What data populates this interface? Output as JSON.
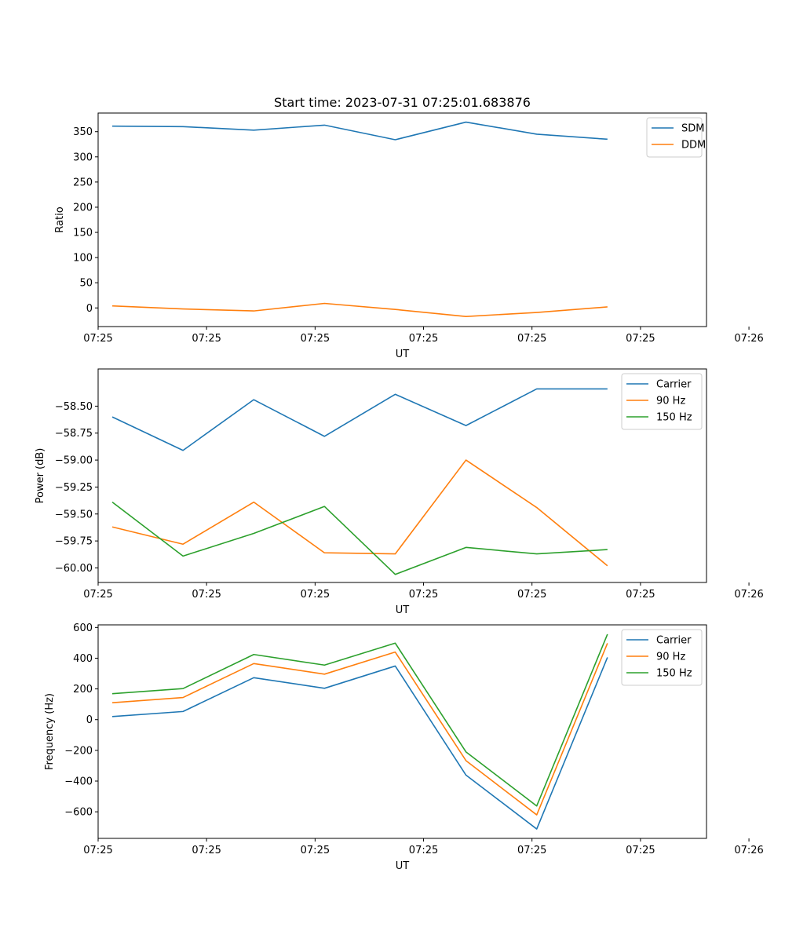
{
  "title": "Start time: 2023-07-31 07:25:01.683876",
  "chart_data": [
    {
      "type": "line",
      "title": "Start time: 2023-07-31 07:25:01.683876",
      "xlabel": "UT",
      "ylabel": "Ratio",
      "x": [
        1,
        2,
        3,
        4,
        5,
        6,
        7,
        8
      ],
      "xlim": [
        0.8,
        9.4
      ],
      "ylim": [
        -37,
        387
      ],
      "xticks": [
        {
          "v": 0.8,
          "label": "07:25"
        },
        {
          "v": 2.333,
          "label": "07:25"
        },
        {
          "v": 3.867,
          "label": "07:25"
        },
        {
          "v": 5.4,
          "label": "07:25"
        },
        {
          "v": 6.933,
          "label": "07:25"
        },
        {
          "v": 8.467,
          "label": "07:25"
        },
        {
          "v": 10.0,
          "label": "07:26"
        }
      ],
      "yticks": [
        {
          "v": 0,
          "label": "0"
        },
        {
          "v": 50,
          "label": "50"
        },
        {
          "v": 100,
          "label": "100"
        },
        {
          "v": 150,
          "label": "150"
        },
        {
          "v": 200,
          "label": "200"
        },
        {
          "v": 250,
          "label": "250"
        },
        {
          "v": 300,
          "label": "300"
        },
        {
          "v": 350,
          "label": "350"
        }
      ],
      "legend_position": "top-right",
      "series": [
        {
          "name": "SDM",
          "color": "#1f77b4",
          "values": [
            361,
            360,
            353,
            363,
            334,
            369,
            345,
            335
          ]
        },
        {
          "name": "DDM",
          "color": "#ff7f0e",
          "values": [
            4,
            -2,
            -6,
            9,
            -3,
            -17,
            -9,
            2
          ]
        }
      ]
    },
    {
      "type": "line",
      "xlabel": "UT",
      "ylabel": "Power (dB)",
      "x": [
        1,
        2,
        3,
        4,
        5,
        6,
        7,
        8
      ],
      "xlim": [
        0.8,
        9.4
      ],
      "ylim": [
        -60.135,
        -58.155
      ],
      "xticks": [
        {
          "v": 0.8,
          "label": "07:25"
        },
        {
          "v": 2.333,
          "label": "07:25"
        },
        {
          "v": 3.867,
          "label": "07:25"
        },
        {
          "v": 5.4,
          "label": "07:25"
        },
        {
          "v": 6.933,
          "label": "07:25"
        },
        {
          "v": 8.467,
          "label": "07:25"
        },
        {
          "v": 10.0,
          "label": "07:26"
        }
      ],
      "yticks": [
        {
          "v": -60.0,
          "label": "−60.00"
        },
        {
          "v": -59.75,
          "label": "−59.75"
        },
        {
          "v": -59.5,
          "label": "−59.50"
        },
        {
          "v": -59.25,
          "label": "−59.25"
        },
        {
          "v": -59.0,
          "label": "−59.00"
        },
        {
          "v": -58.75,
          "label": "−58.75"
        },
        {
          "v": -58.5,
          "label": "−58.50"
        }
      ],
      "legend_position": "top-right",
      "series": [
        {
          "name": "Carrier",
          "color": "#1f77b4",
          "values": [
            -58.6,
            -58.91,
            -58.44,
            -58.78,
            -58.39,
            -58.68,
            -58.34,
            -58.34
          ]
        },
        {
          "name": "90 Hz",
          "color": "#ff7f0e",
          "values": [
            -59.62,
            -59.78,
            -59.39,
            -59.86,
            -59.87,
            -59.0,
            -59.44,
            -59.98
          ]
        },
        {
          "name": "150 Hz",
          "color": "#2ca02c",
          "values": [
            -59.39,
            -59.89,
            -59.68,
            -59.43,
            -60.06,
            -59.81,
            -59.87,
            -59.83
          ]
        }
      ]
    },
    {
      "type": "line",
      "xlabel": "UT",
      "ylabel": "Frequency (Hz)",
      "x": [
        1,
        2,
        3,
        4,
        5,
        6,
        7,
        8
      ],
      "xlim": [
        0.8,
        9.4
      ],
      "ylim": [
        -773,
        617
      ],
      "xticks": [
        {
          "v": 0.8,
          "label": "07:25"
        },
        {
          "v": 2.333,
          "label": "07:25"
        },
        {
          "v": 3.867,
          "label": "07:25"
        },
        {
          "v": 5.4,
          "label": "07:25"
        },
        {
          "v": 6.933,
          "label": "07:25"
        },
        {
          "v": 8.467,
          "label": "07:25"
        },
        {
          "v": 10.0,
          "label": "07:26"
        }
      ],
      "yticks": [
        {
          "v": -600,
          "label": "−600"
        },
        {
          "v": -400,
          "label": "−400"
        },
        {
          "v": -200,
          "label": "−200"
        },
        {
          "v": 0,
          "label": "0"
        },
        {
          "v": 200,
          "label": "200"
        },
        {
          "v": 400,
          "label": "400"
        },
        {
          "v": 600,
          "label": "600"
        }
      ],
      "legend_position": "top-right",
      "series": [
        {
          "name": "Carrier",
          "color": "#1f77b4",
          "values": [
            20,
            53,
            273,
            204,
            349,
            -361,
            -712,
            405
          ]
        },
        {
          "name": "90 Hz",
          "color": "#ff7f0e",
          "values": [
            110,
            144,
            365,
            296,
            440,
            -267,
            -620,
            497
          ]
        },
        {
          "name": "150 Hz",
          "color": "#2ca02c",
          "values": [
            169,
            202,
            424,
            355,
            498,
            -210,
            -562,
            556
          ]
        }
      ]
    }
  ]
}
